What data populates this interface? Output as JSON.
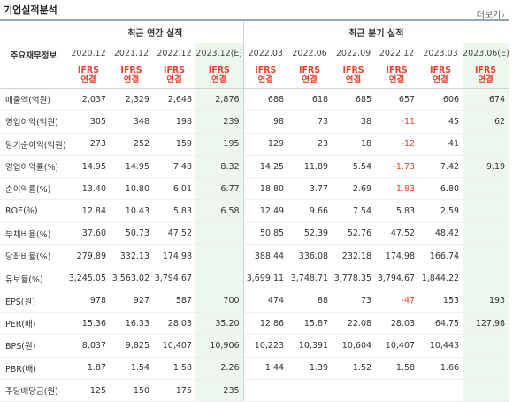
{
  "title": "기업실적분석",
  "more": {
    "label": "더보기",
    "arrow": "›"
  },
  "header": {
    "item_label": "주요재무정보",
    "annual_group": "최근 연간 실적",
    "quarter_group": "최근 분기 실적",
    "annual_periods": [
      "2020.12",
      "2021.12",
      "2022.12",
      "2023.12(E)"
    ],
    "quarter_periods": [
      "2022.03",
      "2022.06",
      "2022.09",
      "2022.12",
      "2023.03",
      "2023.06(E)"
    ],
    "basis_top": "IFRS",
    "basis_bottom": "연결"
  },
  "colors": {
    "negative": "#e8412f",
    "estimate_bg": "#eef7ee",
    "header_border": "#9aa3b0"
  },
  "rows": [
    {
      "label": "매출액(억원)",
      "annual": [
        "2,037",
        "2,329",
        "2,648",
        "2,876"
      ],
      "quarter": [
        "688",
        "618",
        "685",
        "657",
        "606",
        "674"
      ]
    },
    {
      "label": "영업이익(억원)",
      "annual": [
        "305",
        "348",
        "198",
        "239"
      ],
      "quarter": [
        "98",
        "73",
        "38",
        "-11",
        "45",
        "62"
      ]
    },
    {
      "label": "당기순이익(억원)",
      "annual": [
        "273",
        "252",
        "159",
        "195"
      ],
      "quarter": [
        "129",
        "23",
        "18",
        "-12",
        "41",
        ""
      ]
    },
    {
      "label": "영업이익률(%)",
      "annual": [
        "14.95",
        "14.95",
        "7.48",
        "8.32"
      ],
      "quarter": [
        "14.25",
        "11.89",
        "5.54",
        "-1.73",
        "7.42",
        "9.19"
      ]
    },
    {
      "label": "순이익률(%)",
      "annual": [
        "13.40",
        "10.80",
        "6.01",
        "6.77"
      ],
      "quarter": [
        "18.80",
        "3.77",
        "2.69",
        "-1.83",
        "6.80",
        ""
      ]
    },
    {
      "label": "ROE(%)",
      "annual": [
        "12.84",
        "10.43",
        "5.83",
        "6.58"
      ],
      "quarter": [
        "12.49",
        "9.66",
        "7.54",
        "5.83",
        "2.59",
        ""
      ]
    },
    {
      "label": "부채비율(%)",
      "annual": [
        "37.60",
        "50.73",
        "47.52",
        ""
      ],
      "quarter": [
        "50.85",
        "52.39",
        "52.76",
        "47.52",
        "48.42",
        ""
      ]
    },
    {
      "label": "당좌비율(%)",
      "annual": [
        "279.89",
        "332.13",
        "174.98",
        ""
      ],
      "quarter": [
        "388.44",
        "336.08",
        "232.18",
        "174.98",
        "166.74",
        ""
      ]
    },
    {
      "label": "유보율(%)",
      "annual": [
        "3,245.05",
        "3,563.02",
        "3,794.67",
        ""
      ],
      "quarter": [
        "3,699.11",
        "3,748.71",
        "3,778.35",
        "3,794.67",
        "1,844.22",
        ""
      ]
    },
    {
      "label": "EPS(원)",
      "annual": [
        "978",
        "927",
        "587",
        "700"
      ],
      "quarter": [
        "474",
        "88",
        "73",
        "-47",
        "153",
        "193"
      ]
    },
    {
      "label": "PER(배)",
      "annual": [
        "15.36",
        "16.33",
        "28.03",
        "35.20"
      ],
      "quarter": [
        "12.86",
        "15.87",
        "22.08",
        "28.03",
        "64.75",
        "127.98"
      ]
    },
    {
      "label": "BPS(원)",
      "annual": [
        "8,037",
        "9,825",
        "10,407",
        "10,906"
      ],
      "quarter": [
        "10,223",
        "10,391",
        "10,604",
        "10,407",
        "10,443",
        ""
      ]
    },
    {
      "label": "PBR(배)",
      "annual": [
        "1.87",
        "1.54",
        "1.58",
        "2.26"
      ],
      "quarter": [
        "1.44",
        "1.39",
        "1.52",
        "1.58",
        "1.66",
        ""
      ]
    },
    {
      "label": "주당배당금(원)",
      "annual": [
        "125",
        "150",
        "175",
        "235"
      ],
      "quarter": [
        "",
        "",
        "",
        "",
        "",
        ""
      ]
    }
  ]
}
